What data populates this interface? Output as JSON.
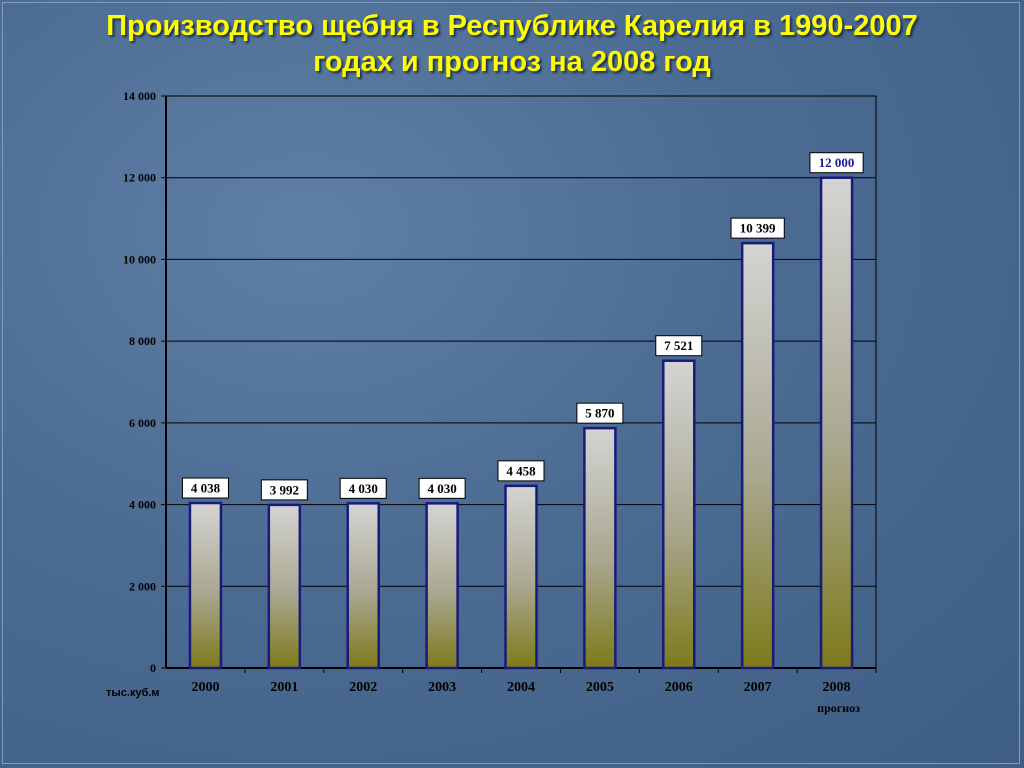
{
  "slide": {
    "title_line1": "Производство щебня в Республике Карелия в 1990-2007",
    "title_line2": "годах и прогноз на 2008 год"
  },
  "chart_data": {
    "type": "bar",
    "title": "Производство щебня в Республике Карелия в 1990-2007 годах и прогноз на 2008 год",
    "ylabel": "тыс.куб.м",
    "categories": [
      "2000",
      "2001",
      "2002",
      "2003",
      "2004",
      "2005",
      "2006",
      "2007",
      "2008"
    ],
    "category_sublabels": [
      "",
      "",
      "",
      "",
      "",
      "",
      "",
      "",
      "прогноз"
    ],
    "values": [
      4038,
      3992,
      4030,
      4030,
      4458,
      5870,
      7521,
      10399,
      12000
    ],
    "value_labels": [
      "4 038",
      "3 992",
      "4 030",
      "4 030",
      "4 458",
      "5 870",
      "7 521",
      "10 399",
      "12 000"
    ],
    "ylim": [
      0,
      14000
    ],
    "yticks": [
      0,
      2000,
      4000,
      6000,
      8000,
      10000,
      12000,
      14000
    ],
    "ytick_labels": [
      "0",
      "2 000",
      "4 000",
      "6 000",
      "8 000",
      "10 000",
      "12 000",
      "14 000"
    ],
    "grid": true,
    "colors": {
      "bar_top": "#d4d4d4",
      "bar_bottom": "#7d7a1a",
      "bar_border": "#1a1a7a",
      "highlight_label": "#1a1a9a",
      "label_text": "#000000",
      "title": "#ffff00"
    },
    "highlighted_index": 8
  }
}
